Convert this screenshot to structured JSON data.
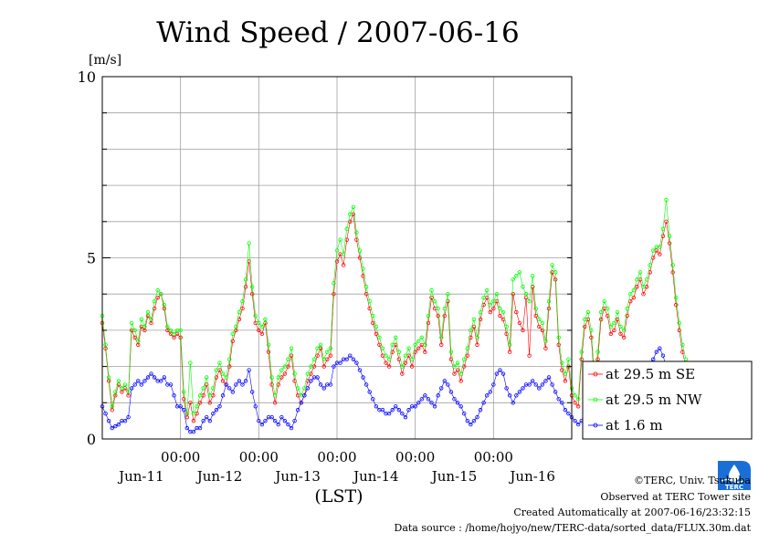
{
  "chart_data": {
    "type": "line",
    "title": "Wind Speed / 2007-06-16",
    "ylabel": "[m/s]",
    "xlabel": "(LST)",
    "ylim": [
      0,
      10
    ],
    "y_ticks": [
      "0",
      "5",
      "10"
    ],
    "y_minor_step": 1,
    "x_range_days": [
      0,
      6
    ],
    "x_time_ticks": [
      "00:00",
      "00:00",
      "00:00",
      "00:00",
      "00:00"
    ],
    "x_time_tick_days": [
      1,
      2,
      3,
      4,
      5
    ],
    "x_day_labels": [
      "Jun-11",
      "Jun-12",
      "Jun-13",
      "Jun-14",
      "Jun-15",
      "Jun-16"
    ],
    "x_day_label_centers": [
      0.5,
      1.5,
      2.5,
      3.5,
      4.5,
      5.5
    ],
    "grid": true,
    "legend_position": "right",
    "sample_interval_hours": 1,
    "series": [
      {
        "name": "at 29.5 m SE",
        "color": "#ff0000",
        "values": [
          3.2,
          2.5,
          1.6,
          0.8,
          1.2,
          1.5,
          1.3,
          1.4,
          1.2,
          3.0,
          2.8,
          2.6,
          3.1,
          3.0,
          3.4,
          3.2,
          3.6,
          3.9,
          4.0,
          3.6,
          3.0,
          2.9,
          2.8,
          2.9,
          2.8,
          1.1,
          0.6,
          1.0,
          0.5,
          0.7,
          1.0,
          1.2,
          1.5,
          1.0,
          1.2,
          1.7,
          1.9,
          1.6,
          1.5,
          2.0,
          2.7,
          3.0,
          3.3,
          3.6,
          4.2,
          4.9,
          4.0,
          3.2,
          3.0,
          2.9,
          3.2,
          2.4,
          1.5,
          1.0,
          1.5,
          1.7,
          1.8,
          2.0,
          2.3,
          1.6,
          1.2,
          1.0,
          1.2,
          1.6,
          1.8,
          2.0,
          2.3,
          2.5,
          2.0,
          2.2,
          2.3,
          4.0,
          4.9,
          5.1,
          4.8,
          5.5,
          6.0,
          6.2,
          5.5,
          5.0,
          4.5,
          4.0,
          3.6,
          3.2,
          2.9,
          2.6,
          2.3,
          2.1,
          2.0,
          2.4,
          2.6,
          2.2,
          1.8,
          2.1,
          2.3,
          2.0,
          2.4,
          2.5,
          2.6,
          2.4,
          3.2,
          3.9,
          3.6,
          3.4,
          2.6,
          3.4,
          3.8,
          2.2,
          1.8,
          1.9,
          1.6,
          2.0,
          2.3,
          2.8,
          3.1,
          2.6,
          3.3,
          3.7,
          3.9,
          3.5,
          3.6,
          3.8,
          3.4,
          3.3,
          2.9,
          2.4,
          4.0,
          3.5,
          3.2,
          3.0,
          3.9,
          2.3,
          4.2,
          3.4,
          3.1,
          3.0,
          2.5,
          3.6,
          4.6,
          4.4,
          2.6,
          1.9,
          1.6,
          2.0,
          1.2,
          1.0,
          0.9,
          2.2,
          3.1,
          3.3,
          2.8,
          1.5,
          2.2,
          3.3,
          3.6,
          3.4,
          2.9,
          3.0,
          3.3,
          2.9,
          2.8,
          3.4,
          3.8,
          3.9,
          4.2,
          4.4,
          4.0,
          4.2,
          4.6,
          5.0,
          5.2,
          5.1,
          5.6,
          6.0,
          5.4,
          4.6,
          3.7,
          3.0,
          2.4,
          2.0
        ]
      },
      {
        "name": "at 29.5 m NW",
        "color": "#00ff00",
        "values": [
          3.4,
          2.6,
          1.7,
          0.9,
          1.3,
          1.6,
          1.4,
          1.5,
          1.3,
          3.2,
          3.0,
          2.7,
          3.3,
          3.1,
          3.5,
          3.3,
          3.8,
          4.1,
          4.0,
          3.7,
          3.1,
          3.0,
          2.9,
          3.0,
          3.0,
          1.3,
          0.7,
          2.1,
          0.7,
          0.9,
          1.2,
          1.4,
          1.7,
          1.2,
          1.4,
          1.9,
          2.1,
          1.8,
          1.7,
          2.2,
          2.9,
          3.1,
          3.5,
          3.8,
          4.4,
          5.4,
          4.2,
          3.4,
          3.2,
          3.1,
          3.3,
          2.6,
          1.7,
          1.2,
          1.7,
          1.9,
          2.0,
          2.2,
          2.5,
          1.8,
          1.4,
          1.2,
          1.4,
          1.8,
          2.0,
          2.2,
          2.5,
          2.6,
          2.2,
          2.4,
          2.5,
          4.3,
          5.2,
          5.5,
          5.1,
          5.8,
          6.2,
          6.4,
          5.7,
          5.2,
          4.7,
          4.2,
          3.8,
          3.4,
          3.1,
          2.8,
          2.5,
          2.3,
          2.2,
          2.6,
          2.8,
          2.4,
          2.0,
          2.3,
          2.5,
          2.2,
          2.6,
          2.7,
          2.8,
          2.6,
          3.4,
          4.1,
          3.8,
          3.6,
          2.8,
          3.6,
          4.0,
          2.4,
          2.0,
          2.1,
          1.8,
          2.2,
          2.5,
          3.0,
          3.3,
          2.8,
          3.5,
          3.9,
          4.1,
          3.7,
          3.8,
          4.0,
          3.6,
          3.5,
          3.1,
          2.6,
          4.4,
          4.5,
          4.6,
          4.2,
          4.0,
          3.8,
          4.5,
          3.6,
          3.3,
          3.2,
          2.7,
          3.8,
          4.8,
          4.6,
          2.8,
          2.1,
          1.8,
          2.2,
          1.4,
          1.2,
          1.1,
          2.4,
          3.3,
          3.5,
          3.0,
          1.7,
          2.4,
          3.5,
          3.8,
          3.6,
          3.1,
          3.2,
          3.5,
          3.1,
          3.0,
          3.6,
          4.0,
          4.1,
          4.4,
          4.6,
          4.2,
          4.4,
          4.8,
          5.2,
          5.3,
          5.3,
          5.8,
          6.6,
          5.6,
          4.8,
          3.9,
          3.2,
          2.6,
          2.2
        ]
      },
      {
        "name": "at 1.6 m",
        "color": "#0000ff",
        "values": [
          0.9,
          0.7,
          0.5,
          0.3,
          0.35,
          0.4,
          0.5,
          0.5,
          0.6,
          1.4,
          1.5,
          1.6,
          1.5,
          1.6,
          1.7,
          1.8,
          1.7,
          1.6,
          1.6,
          1.7,
          1.5,
          1.5,
          1.2,
          0.9,
          0.9,
          0.8,
          0.3,
          0.2,
          0.2,
          0.3,
          0.3,
          0.5,
          0.6,
          0.5,
          0.7,
          0.8,
          0.9,
          1.2,
          1.5,
          1.4,
          1.3,
          1.5,
          1.6,
          1.5,
          1.6,
          1.9,
          1.3,
          0.9,
          0.5,
          0.4,
          0.5,
          0.6,
          0.6,
          0.5,
          0.4,
          0.6,
          0.5,
          0.4,
          0.3,
          0.5,
          0.8,
          1.0,
          1.2,
          1.4,
          1.6,
          1.7,
          1.7,
          1.5,
          1.4,
          1.5,
          1.5,
          2.0,
          2.1,
          2.1,
          2.2,
          2.2,
          2.3,
          2.2,
          2.1,
          1.9,
          1.7,
          1.5,
          1.3,
          1.1,
          0.9,
          0.8,
          0.8,
          0.7,
          0.7,
          0.8,
          0.9,
          0.8,
          0.7,
          0.6,
          0.8,
          0.9,
          0.9,
          1.0,
          1.1,
          1.2,
          1.1,
          1.0,
          0.9,
          1.2,
          1.4,
          1.6,
          1.5,
          1.3,
          1.1,
          1.0,
          0.9,
          0.7,
          0.5,
          0.4,
          0.5,
          0.6,
          0.8,
          1.0,
          1.2,
          1.3,
          1.5,
          1.8,
          1.9,
          1.8,
          1.4,
          1.2,
          1.0,
          1.2,
          1.3,
          1.4,
          1.5,
          1.5,
          1.6,
          1.5,
          1.4,
          1.5,
          1.6,
          1.7,
          1.5,
          1.3,
          1.1,
          1.0,
          0.8,
          0.7,
          0.6,
          0.5,
          0.4,
          0.5,
          0.5,
          0.6,
          0.7,
          0.9,
          1.1,
          1.2,
          1.3,
          1.3,
          1.4,
          1.4,
          1.5,
          1.6,
          1.7,
          1.8,
          1.7,
          1.6,
          1.7,
          1.8,
          1.9,
          2.0,
          2.1,
          2.2,
          2.4,
          2.5,
          2.3,
          2.0,
          1.6,
          1.2,
          0.9,
          0.7
        ]
      }
    ]
  },
  "credits": {
    "copyright": "©TERC, Univ. Tsukuba",
    "site": "Observed at TERC Tower site",
    "created": "Created Automatically at 2007-06-16/23:32:15",
    "source": "Data source : /home/hojyo/new/TERC-data/sorted_data/FLUX.30m.dat"
  },
  "logo": {
    "text": "TERC",
    "color": "#1a6fd6"
  }
}
